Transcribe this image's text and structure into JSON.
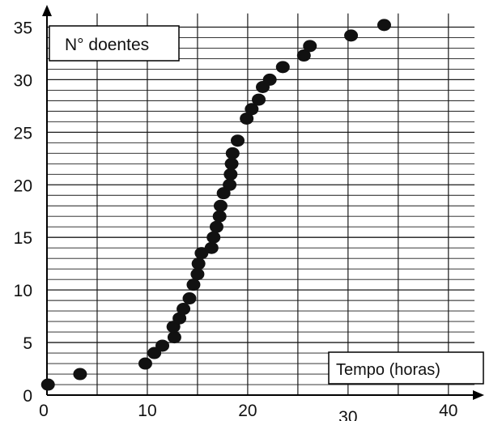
{
  "chart_data": {
    "type": "scatter",
    "title": "",
    "ylabel": "N° doentes",
    "xlabel": "Tempo (horas)",
    "x_ticks": [
      "0",
      "10",
      "20",
      "30",
      "40"
    ],
    "y_ticks": [
      "0",
      "5",
      "10",
      "15",
      "20",
      "25",
      "30",
      "35"
    ],
    "xlim": [
      0,
      43
    ],
    "ylim": [
      0,
      36.5
    ],
    "grid": true,
    "minor_y_step": 1,
    "major_x_step": 5,
    "colors": {
      "points": "#111111",
      "grid": "#1a1a1a",
      "axis": "#000000"
    },
    "series": [
      {
        "points": [
          [
            0.1,
            1.0
          ],
          [
            3.3,
            2.0
          ],
          [
            9.8,
            3.0
          ],
          [
            10.7,
            4.0
          ],
          [
            11.5,
            4.7
          ],
          [
            12.7,
            5.5
          ],
          [
            12.6,
            6.5
          ],
          [
            13.2,
            7.3
          ],
          [
            13.6,
            8.2
          ],
          [
            14.2,
            9.2
          ],
          [
            14.6,
            10.5
          ],
          [
            15.0,
            11.5
          ],
          [
            15.1,
            12.5
          ],
          [
            15.4,
            13.5
          ],
          [
            16.4,
            14.0
          ],
          [
            16.6,
            15.0
          ],
          [
            16.9,
            16.0
          ],
          [
            17.2,
            17.0
          ],
          [
            17.3,
            18.0
          ],
          [
            17.6,
            19.2
          ],
          [
            18.2,
            20.0
          ],
          [
            18.3,
            21.0
          ],
          [
            18.4,
            22.0
          ],
          [
            18.5,
            23.0
          ],
          [
            19.0,
            24.2
          ],
          [
            19.9,
            26.3
          ],
          [
            20.4,
            27.2
          ],
          [
            21.1,
            28.1
          ],
          [
            21.5,
            29.3
          ],
          [
            22.2,
            30.0
          ],
          [
            23.5,
            31.2
          ],
          [
            25.6,
            32.3
          ],
          [
            26.2,
            33.2
          ],
          [
            30.3,
            34.2
          ],
          [
            33.6,
            35.2
          ]
        ]
      }
    ]
  }
}
